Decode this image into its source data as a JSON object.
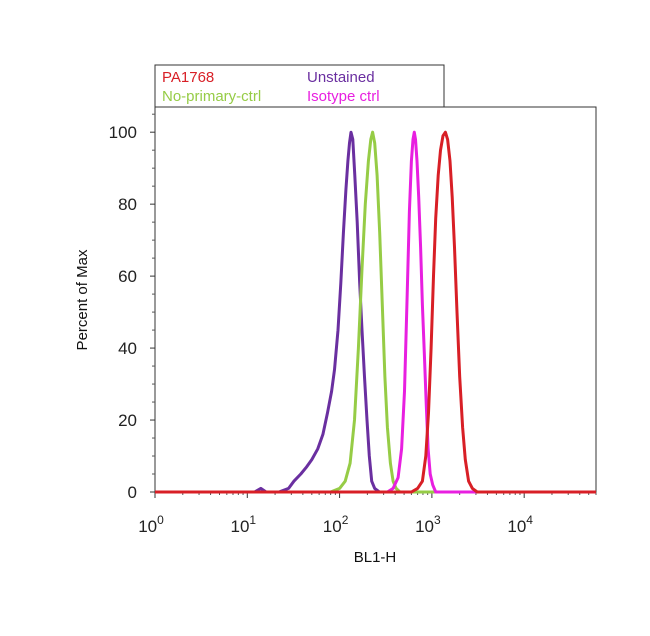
{
  "chart_data": {
    "type": "line",
    "title": "",
    "xlabel": "BL1-H",
    "ylabel": "Percent of Max",
    "xscale": "log",
    "xlim": [
      1,
      60000
    ],
    "ylim": [
      0,
      107
    ],
    "y_ticks": [
      0,
      20,
      40,
      60,
      80,
      100
    ],
    "x_ticks": [
      {
        "base": "10",
        "exp": "0",
        "value": 1
      },
      {
        "base": "10",
        "exp": "1",
        "value": 10
      },
      {
        "base": "10",
        "exp": "2",
        "value": 100
      },
      {
        "base": "10",
        "exp": "3",
        "value": 1000
      },
      {
        "base": "10",
        "exp": "4",
        "value": 10000
      }
    ],
    "grid": false,
    "legend_position": "top-left",
    "series": [
      {
        "name": "Unstained",
        "color": "#6a2fa0",
        "points": [
          [
            1,
            0
          ],
          [
            12,
            0
          ],
          [
            14,
            1
          ],
          [
            16,
            0
          ],
          [
            22,
            0
          ],
          [
            28,
            1
          ],
          [
            32,
            3
          ],
          [
            38,
            5
          ],
          [
            44,
            7
          ],
          [
            50,
            9
          ],
          [
            58,
            12
          ],
          [
            66,
            16
          ],
          [
            74,
            22
          ],
          [
            82,
            28
          ],
          [
            88,
            34
          ],
          [
            96,
            45
          ],
          [
            103,
            58
          ],
          [
            110,
            72
          ],
          [
            117,
            84
          ],
          [
            123,
            92
          ],
          [
            128,
            97
          ],
          [
            133,
            100
          ],
          [
            139,
            98
          ],
          [
            146,
            88
          ],
          [
            155,
            75
          ],
          [
            165,
            58
          ],
          [
            175,
            45
          ],
          [
            186,
            32
          ],
          [
            198,
            20
          ],
          [
            210,
            10
          ],
          [
            223,
            3
          ],
          [
            240,
            1
          ],
          [
            270,
            0
          ],
          [
            60000,
            0
          ]
        ]
      },
      {
        "name": "No-primary-ctrl",
        "color": "#96cc46",
        "points": [
          [
            1,
            0
          ],
          [
            80,
            0
          ],
          [
            100,
            1
          ],
          [
            115,
            3
          ],
          [
            130,
            8
          ],
          [
            145,
            20
          ],
          [
            160,
            40
          ],
          [
            175,
            62
          ],
          [
            190,
            80
          ],
          [
            205,
            92
          ],
          [
            218,
            98
          ],
          [
            228,
            100
          ],
          [
            240,
            97
          ],
          [
            255,
            88
          ],
          [
            272,
            72
          ],
          [
            290,
            52
          ],
          [
            310,
            32
          ],
          [
            330,
            18
          ],
          [
            355,
            8
          ],
          [
            380,
            3
          ],
          [
            410,
            1
          ],
          [
            450,
            0
          ],
          [
            60000,
            0
          ]
        ]
      },
      {
        "name": "Isotype ctrl",
        "color": "#e81fe0",
        "points": [
          [
            1,
            0
          ],
          [
            330,
            0
          ],
          [
            380,
            1
          ],
          [
            430,
            4
          ],
          [
            470,
            12
          ],
          [
            505,
            28
          ],
          [
            540,
            55
          ],
          [
            570,
            78
          ],
          [
            600,
            92
          ],
          [
            625,
            98
          ],
          [
            645,
            100
          ],
          [
            665,
            98
          ],
          [
            690,
            92
          ],
          [
            720,
            82
          ],
          [
            755,
            68
          ],
          [
            790,
            52
          ],
          [
            830,
            38
          ],
          [
            870,
            24
          ],
          [
            910,
            12
          ],
          [
            960,
            5
          ],
          [
            1020,
            2
          ],
          [
            1100,
            0
          ],
          [
            60000,
            0
          ]
        ]
      },
      {
        "name": "PA1768",
        "color": "#d81f26",
        "points": [
          [
            1,
            0
          ],
          [
            600,
            0
          ],
          [
            700,
            1
          ],
          [
            790,
            3
          ],
          [
            860,
            10
          ],
          [
            920,
            22
          ],
          [
            980,
            40
          ],
          [
            1040,
            60
          ],
          [
            1100,
            76
          ],
          [
            1170,
            88
          ],
          [
            1240,
            95
          ],
          [
            1320,
            99
          ],
          [
            1400,
            100
          ],
          [
            1480,
            98
          ],
          [
            1570,
            92
          ],
          [
            1660,
            82
          ],
          [
            1760,
            68
          ],
          [
            1870,
            50
          ],
          [
            2000,
            32
          ],
          [
            2150,
            18
          ],
          [
            2300,
            9
          ],
          [
            2500,
            3
          ],
          [
            2750,
            1
          ],
          [
            3100,
            0
          ],
          [
            60000,
            0
          ]
        ]
      }
    ],
    "legend": [
      {
        "label": "PA1768",
        "color": "#d81f26"
      },
      {
        "label": "Unstained",
        "color": "#6a2fa0"
      },
      {
        "label": "No-primary-ctrl",
        "color": "#96cc46"
      },
      {
        "label": "Isotype ctrl",
        "color": "#e81fe0"
      }
    ]
  }
}
